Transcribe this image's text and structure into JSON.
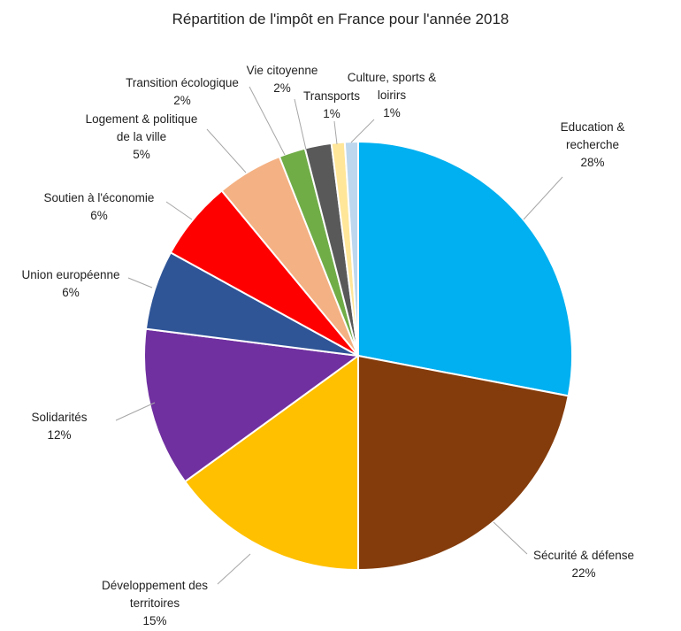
{
  "chart_data": {
    "type": "pie",
    "title": "Répartition de l'impôt en France pour l'année 2018",
    "start_angle_deg": 0,
    "direction": "clockwise",
    "slices": [
      {
        "name": "Education & recherche",
        "label_lines": [
          "Education &",
          "recherche"
        ],
        "value": 28,
        "value_label": "28%",
        "color": "#00B0F0"
      },
      {
        "name": "Sécurité & défense",
        "label_lines": [
          "Sécurité & défense"
        ],
        "value": 22,
        "value_label": "22%",
        "color": "#843C0C"
      },
      {
        "name": "Développement des territoires",
        "label_lines": [
          "Développement des",
          "territoires"
        ],
        "value": 15,
        "value_label": "15%",
        "color": "#FFC000"
      },
      {
        "name": "Solidarités",
        "label_lines": [
          "Solidarités"
        ],
        "value": 12,
        "value_label": "12%",
        "color": "#7030A0"
      },
      {
        "name": "Union européenne",
        "label_lines": [
          "Union européenne"
        ],
        "value": 6,
        "value_label": "6%",
        "color": "#2F5597"
      },
      {
        "name": "Soutien à l'économie",
        "label_lines": [
          "Soutien à l'économie"
        ],
        "value": 6,
        "value_label": "6%",
        "color": "#FF0000"
      },
      {
        "name": "Logement & politique de la ville",
        "label_lines": [
          "Logement & politique",
          "de la ville"
        ],
        "value": 5,
        "value_label": "5%",
        "color": "#F4B183"
      },
      {
        "name": "Transition écologique",
        "label_lines": [
          "Transition écologique"
        ],
        "value": 2,
        "value_label": "2%",
        "color": "#70AD47"
      },
      {
        "name": "Vie citoyenne",
        "label_lines": [
          "Vie citoyenne"
        ],
        "value": 2,
        "value_label": "2%",
        "color": "#595959"
      },
      {
        "name": "Transports",
        "label_lines": [
          "Transports"
        ],
        "value": 1,
        "value_label": "1%",
        "color": "#FFE699"
      },
      {
        "name": "Culture, sports & loirirs",
        "label_lines": [
          "Culture, sports &",
          "loirirs"
        ],
        "value": 1,
        "value_label": "1%",
        "color": "#BDD7EE"
      }
    ]
  }
}
